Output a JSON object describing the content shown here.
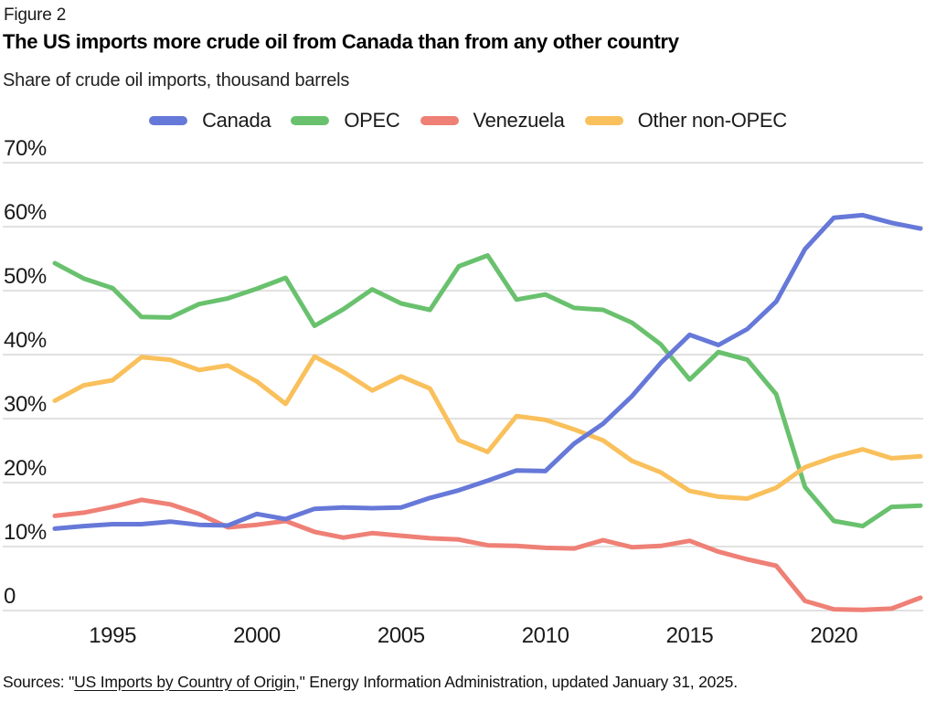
{
  "figure_label": "Figure 2",
  "title": "The US imports more crude oil from Canada than from any other country",
  "subtitle": "Share of crude oil imports, thousand barrels",
  "source": {
    "prefix": "Sources: \"",
    "link_text": "US Imports by Country of Origin",
    "suffix": ",\" Energy Information Administration, updated January 31, 2025."
  },
  "chart_data": {
    "type": "line",
    "title": "The US imports more crude oil from Canada than from any other country",
    "xlabel": "",
    "ylabel": "Share of crude oil imports (%)",
    "ylim": [
      0,
      70
    ],
    "grid": true,
    "legend_position": "top",
    "x": [
      1993,
      1994,
      1995,
      1996,
      1997,
      1998,
      1999,
      2000,
      2001,
      2002,
      2003,
      2004,
      2005,
      2006,
      2007,
      2008,
      2009,
      2010,
      2011,
      2012,
      2013,
      2014,
      2015,
      2016,
      2017,
      2018,
      2019,
      2020,
      2021,
      2022,
      2023
    ],
    "x_ticks": [
      1995,
      2000,
      2005,
      2010,
      2015,
      2020
    ],
    "y_ticks": [
      {
        "value": 70,
        "label": "70%"
      },
      {
        "value": 60,
        "label": "60%"
      },
      {
        "value": 50,
        "label": "50%"
      },
      {
        "value": 40,
        "label": "40%"
      },
      {
        "value": 30,
        "label": "30%"
      },
      {
        "value": 20,
        "label": "20%"
      },
      {
        "value": 10,
        "label": "10%"
      },
      {
        "value": 0,
        "label": "0"
      }
    ],
    "series": [
      {
        "name": "Canada",
        "color": "#6678d8",
        "values": [
          12.8,
          13.2,
          13.5,
          13.5,
          13.9,
          13.4,
          13.3,
          15.1,
          14.3,
          15.9,
          16.1,
          16.0,
          16.1,
          17.6,
          18.8,
          20.3,
          21.9,
          21.8,
          26.1,
          29.2,
          33.5,
          38.7,
          43.1,
          41.5,
          44.0,
          48.3,
          56.5,
          61.4,
          61.8,
          60.6,
          59.7
        ]
      },
      {
        "name": "OPEC",
        "color": "#69c16e",
        "values": [
          54.3,
          51.9,
          50.4,
          45.9,
          45.8,
          47.9,
          48.8,
          50.3,
          52.0,
          44.5,
          47.1,
          50.2,
          48.0,
          47.0,
          53.8,
          55.5,
          48.6,
          49.4,
          47.3,
          47.0,
          45.0,
          41.6,
          36.1,
          40.4,
          39.2,
          33.8,
          19.3,
          14.0,
          13.2,
          16.2,
          16.4
        ]
      },
      {
        "name": "Venezuela",
        "color": "#ef8076",
        "values": [
          14.8,
          15.3,
          16.2,
          17.3,
          16.6,
          15.1,
          13.0,
          13.4,
          14.0,
          12.3,
          11.4,
          12.1,
          11.7,
          11.3,
          11.1,
          10.2,
          10.1,
          9.8,
          9.7,
          11.0,
          9.9,
          10.1,
          10.9,
          9.2,
          8.0,
          7.0,
          1.5,
          0.2,
          0.1,
          0.3,
          2.0
        ]
      },
      {
        "name": "Other non-OPEC",
        "color": "#f9c05c",
        "values": [
          32.8,
          35.2,
          36.0,
          39.6,
          39.2,
          37.6,
          38.3,
          35.8,
          32.3,
          39.7,
          37.3,
          34.4,
          36.6,
          34.7,
          26.6,
          24.8,
          30.4,
          29.8,
          28.3,
          26.6,
          23.4,
          21.6,
          18.7,
          17.8,
          17.5,
          19.2,
          22.4,
          24.0,
          25.2,
          23.8,
          24.1
        ]
      }
    ]
  }
}
